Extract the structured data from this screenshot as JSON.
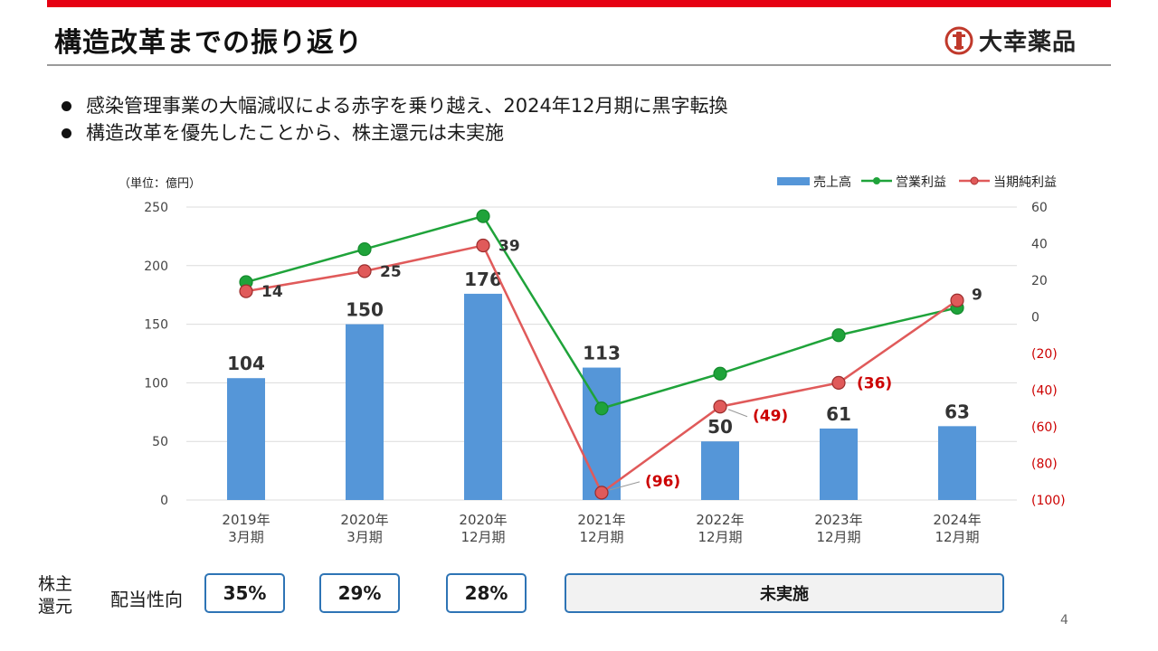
{
  "header": {
    "title": "構造改革までの振り返り",
    "logo_text": "大幸薬品"
  },
  "bullets": [
    "感染管理事業の大幅減収による赤字を乗り越え、2024年12月期に黒字転換",
    "構造改革を優先したことから、株主還元は未実施"
  ],
  "chart_data": {
    "type": "bar+line",
    "unit_label": "（単位：億円）",
    "categories": [
      [
        "2019年",
        "3月期"
      ],
      [
        "2020年",
        "3月期"
      ],
      [
        "2020年",
        "12月期"
      ],
      [
        "2021年",
        "12月期"
      ],
      [
        "2022年",
        "12月期"
      ],
      [
        "2023年",
        "12月期"
      ],
      [
        "2024年",
        "12月期"
      ]
    ],
    "left_axis": {
      "min": 0,
      "max": 250,
      "ticks": [
        "0",
        "50",
        "100",
        "150",
        "200",
        "250"
      ]
    },
    "right_axis": {
      "min": -100,
      "max": 60,
      "ticks": [
        "(100)",
        "(80)",
        "(60)",
        "(40)",
        "(20)",
        "0",
        "20",
        "40",
        "60"
      ]
    },
    "series": [
      {
        "name": "売上高",
        "type": "bar",
        "axis": "left",
        "color": "#5596d8",
        "values": [
          104,
          150,
          176,
          113,
          50,
          61,
          63
        ],
        "labels": [
          "104",
          "150",
          "176",
          "113",
          "50",
          "61",
          "63"
        ]
      },
      {
        "name": "営業利益",
        "type": "line",
        "axis": "right",
        "color": "#1fa33a",
        "values": [
          19,
          37,
          55,
          -50,
          -31,
          -10,
          5
        ]
      },
      {
        "name": "当期純利益",
        "type": "line",
        "axis": "right",
        "color": "#e05a5a",
        "values": [
          14,
          25,
          39,
          -96,
          -49,
          -36,
          9
        ],
        "labels": [
          "14",
          "25",
          "39",
          "(96)",
          "(49)",
          "(36)",
          "9"
        ]
      }
    ]
  },
  "shareholder": {
    "label_line1": "株主",
    "label_line2": "還元",
    "payout_label": "配当性向",
    "values": [
      "35%",
      "29%",
      "28%"
    ],
    "not_implemented": "未実施"
  },
  "page_number": "4"
}
